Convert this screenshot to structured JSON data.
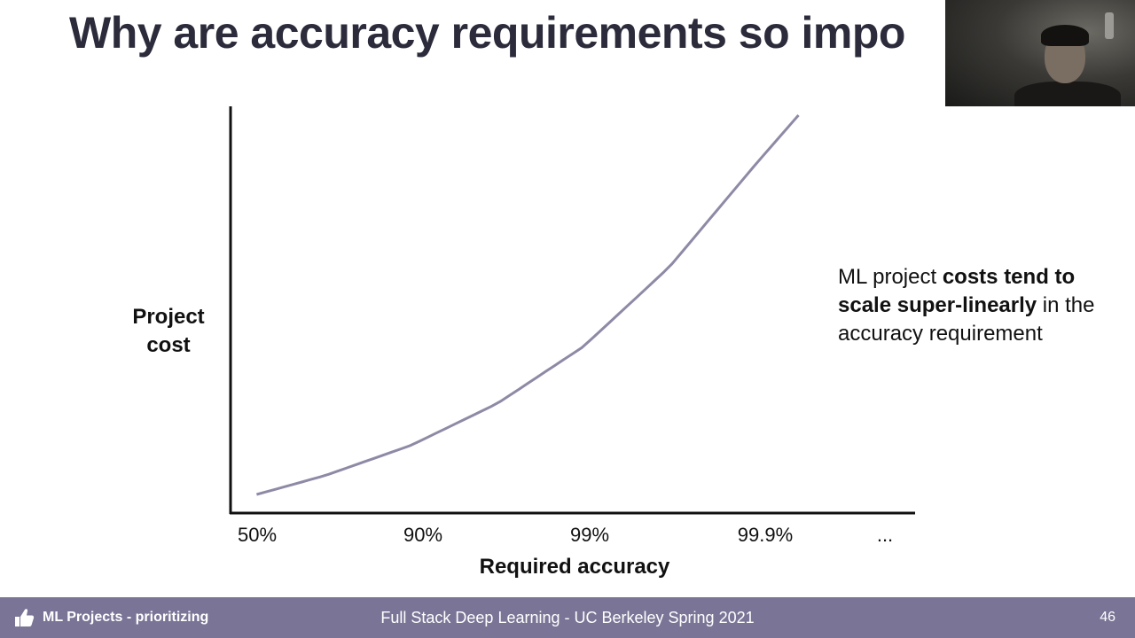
{
  "slide": {
    "title": "Why are accuracy requirements so impo",
    "annotation": {
      "part1": "ML project ",
      "bold": "costs tend to scale super-linearly",
      "part2": " in the accuracy requirement"
    }
  },
  "footer": {
    "section_label": "ML Projects - prioritizing",
    "section_icon": "thumbs-up-icon",
    "course": "Full Stack Deep Learning - UC Berkeley Spring 2021",
    "page_number": "46"
  },
  "colors": {
    "curve": "#8e8aa6",
    "axis": "#111111",
    "footer_bg": "#7a7596",
    "title": "#2b2b3b"
  },
  "chart_data": {
    "type": "line",
    "title": "",
    "xlabel": "Required accuracy",
    "ylabel": "Project cost",
    "categories": [
      "50%",
      "90%",
      "99%",
      "99.9%",
      "..."
    ],
    "grid": false,
    "legend": "none",
    "series": [
      {
        "x": [
          0.1,
          0.5,
          1.0,
          1.5,
          2.0,
          2.5,
          3.0,
          3.25
        ],
        "values": [
          0.0,
          0.05,
          0.13,
          0.24,
          0.39,
          0.6,
          0.87,
          1.0
        ]
      }
    ],
    "xlim": [
      0,
      4
    ],
    "ylim": [
      0,
      1
    ]
  }
}
